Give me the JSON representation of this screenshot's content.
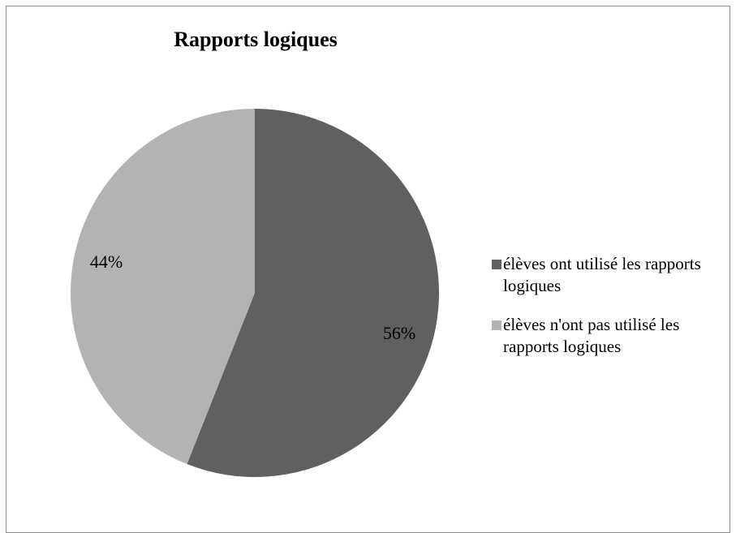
{
  "chart_data": {
    "type": "pie",
    "title": "Rapports logiques",
    "categories": [
      "élèves ont utilisé les rapports logiques",
      "élèves n'ont pas utilisé les rapports logiques"
    ],
    "values": [
      56,
      44
    ],
    "labels": [
      "56%",
      "44%"
    ],
    "colors": [
      "#606060",
      "#b3b3b3"
    ],
    "legend_position": "right",
    "start_angle": "12 o'clock, clockwise"
  }
}
